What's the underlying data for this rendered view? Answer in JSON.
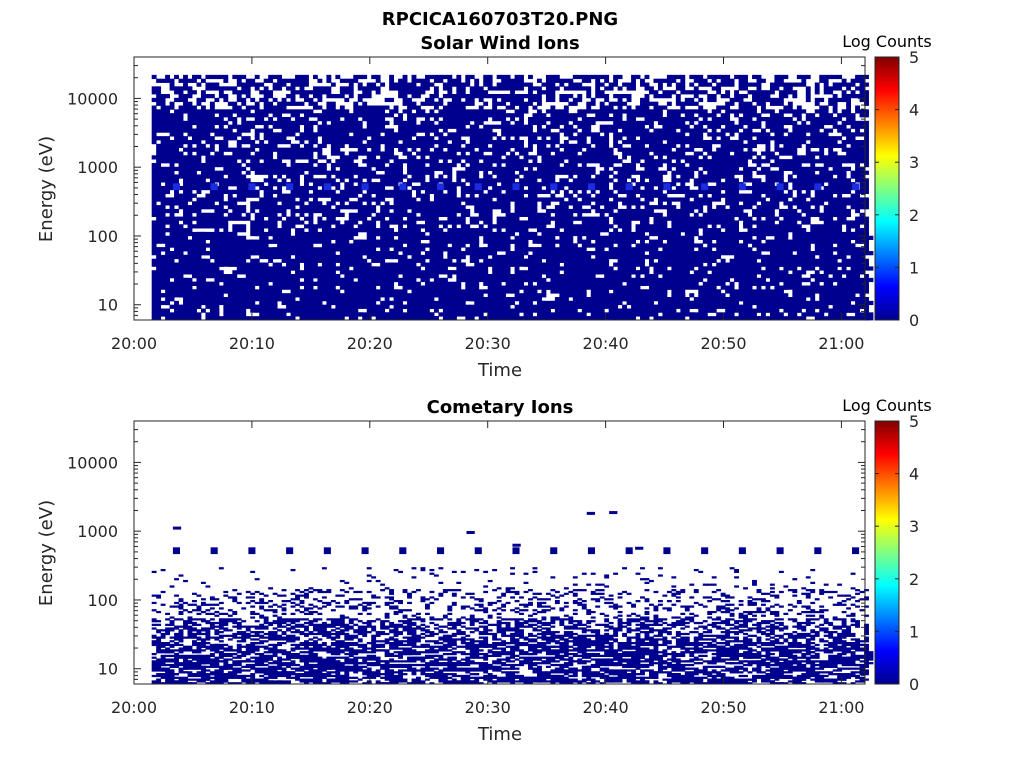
{
  "figure": {
    "title": "RPCICA160703T20.PNG"
  },
  "colors": {
    "data": "#00008f",
    "highlight": "#1a2de0",
    "axis": "#262626"
  },
  "colorbar": {
    "label": "Log Counts",
    "min": 0,
    "max": 5,
    "ticks": [
      "0",
      "1",
      "2",
      "3",
      "4",
      "5"
    ],
    "colormap": [
      "#00008f",
      "#0000ff",
      "#0080ff",
      "#00ffff",
      "#80ff80",
      "#ffff00",
      "#ff8000",
      "#ff0000",
      "#800000"
    ]
  },
  "chart_data": [
    {
      "type": "heatmap",
      "title": "Solar Wind Ions",
      "xlabel": "Time",
      "ylabel": "Energy (eV)",
      "xlim": [
        "20:00",
        "21:02"
      ],
      "ylim": [
        6,
        40000
      ],
      "yscale": "log",
      "xticks": [
        "20:00",
        "20:10",
        "20:20",
        "20:30",
        "20:40",
        "20:50",
        "21:00"
      ],
      "yticks": [
        {
          "value": 10,
          "label": "10"
        },
        {
          "value": 100,
          "label": "100"
        },
        {
          "value": 1000,
          "label": "1000"
        },
        {
          "value": 10000,
          "label": "10000"
        }
      ],
      "data_extent": {
        "time_start": "20:01.5",
        "time_end": "21:02",
        "energy_min": 6,
        "energy_max": 22000
      },
      "fill_density": 0.8,
      "highlight_energy": 520,
      "highlight_period_min": 3.2,
      "values_log_counts": "mostly 0 to 0.5",
      "grid": false
    },
    {
      "type": "heatmap",
      "title": "Cometary Ions",
      "xlabel": "Time",
      "ylabel": "Energy (eV)",
      "xlim": [
        "20:00",
        "21:02"
      ],
      "ylim": [
        6,
        40000
      ],
      "yscale": "log",
      "xticks": [
        "20:00",
        "20:10",
        "20:20",
        "20:30",
        "20:40",
        "20:50",
        "21:00"
      ],
      "yticks": [
        {
          "value": 10,
          "label": "10"
        },
        {
          "value": 100,
          "label": "100"
        },
        {
          "value": 1000,
          "label": "1000"
        },
        {
          "value": 10000,
          "label": "10000"
        }
      ],
      "data_extent": {
        "time_start": "20:01.5",
        "time_end": "21:02",
        "energy_min": 6,
        "energy_max": 300
      },
      "fill_density": 0.55,
      "highlight_energy": 520,
      "highlight_period_min": 3.2,
      "values_log_counts": "mostly 0 to 0.3",
      "grid": false
    }
  ]
}
